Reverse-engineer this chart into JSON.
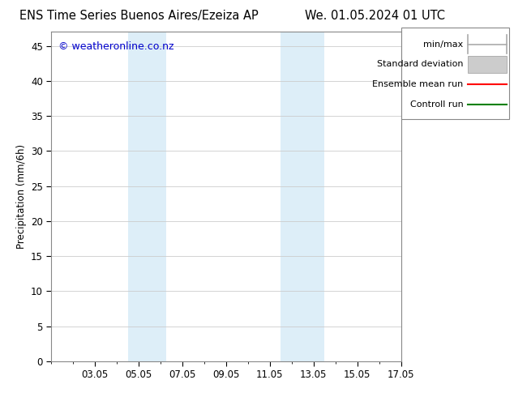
{
  "title_left": "ENS Time Series Buenos Aires/Ezeiza AP",
  "title_right": "We. 01.05.2024 01 UTC",
  "ylabel": "Precipitation (mm/6h)",
  "ylim": [
    0,
    47
  ],
  "yticks": [
    0,
    5,
    10,
    15,
    20,
    25,
    30,
    35,
    40,
    45
  ],
  "xtick_labels": [
    "03.05",
    "05.05",
    "07.05",
    "09.05",
    "11.05",
    "13.05",
    "15.05",
    "17.05"
  ],
  "xtick_positions": [
    2,
    4,
    6,
    8,
    10,
    12,
    14,
    16
  ],
  "xlim": [
    0,
    16
  ],
  "shaded_bands": [
    {
      "x_start": 3.5,
      "x_end": 5.25
    },
    {
      "x_start": 10.5,
      "x_end": 12.5
    }
  ],
  "shade_color": "#ddeef8",
  "background_color": "#ffffff",
  "watermark_text": "© weatheronline.co.nz",
  "watermark_color": "#0000cc",
  "legend_items": [
    {
      "label": "min/max",
      "color": "#aaaaaa",
      "style": "minmax"
    },
    {
      "label": "Standard deviation",
      "color": "#cccccc",
      "style": "band"
    },
    {
      "label": "Ensemble mean run",
      "color": "#ff0000",
      "style": "line"
    },
    {
      "label": "Controll run",
      "color": "#008000",
      "style": "line"
    }
  ],
  "title_fontsize": 10.5,
  "tick_fontsize": 8.5,
  "ylabel_fontsize": 8.5,
  "legend_fontsize": 8.0,
  "watermark_fontsize": 9.0
}
